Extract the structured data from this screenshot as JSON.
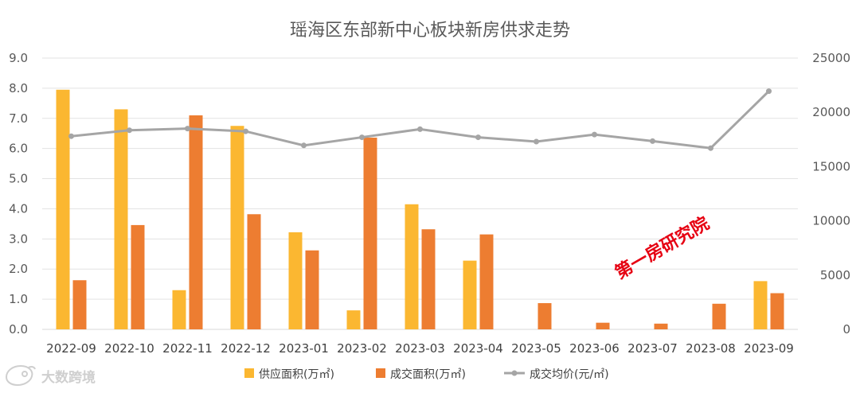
{
  "chart_data": {
    "type": "bar",
    "title": "瑶海区东部新中心板块新房供求走势",
    "categories": [
      "2022-09",
      "2022-10",
      "2022-11",
      "2022-12",
      "2023-01",
      "2023-02",
      "2023-03",
      "2023-04",
      "2023-05",
      "2023-06",
      "2023-07",
      "2023-08",
      "2023-09"
    ],
    "y_left": {
      "min": 0,
      "max": 9,
      "step": 1,
      "tick_labels": [
        "0.0",
        "1.0",
        "2.0",
        "3.0",
        "4.0",
        "5.0",
        "6.0",
        "7.0",
        "8.0",
        "9.0"
      ]
    },
    "y_right": {
      "min": 0,
      "max": 25000,
      "step": 5000,
      "tick_labels": [
        "0",
        "5000",
        "10000",
        "15000",
        "20000",
        "25000"
      ]
    },
    "grid": true,
    "legend_position": "bottom",
    "series": [
      {
        "name": "供应面积(万㎡)",
        "type": "bar",
        "axis": "left",
        "color": "#FBB731",
        "values": [
          7.95,
          7.3,
          1.3,
          6.75,
          3.22,
          0.63,
          4.15,
          2.28,
          0,
          0,
          0,
          0,
          1.6
        ]
      },
      {
        "name": "成交面积(万㎡)",
        "type": "bar",
        "axis": "left",
        "color": "#ED7D31",
        "values": [
          1.63,
          3.46,
          7.1,
          3.82,
          2.62,
          6.36,
          3.32,
          3.15,
          0.87,
          0.22,
          0.19,
          0.85,
          1.2
        ]
      },
      {
        "name": "成交均价(元/㎡)",
        "type": "line",
        "axis": "right",
        "color": "#A5A5A5",
        "values": [
          17800,
          18350,
          18500,
          18250,
          16950,
          17700,
          18450,
          17700,
          17300,
          17950,
          17350,
          16700,
          21950
        ]
      }
    ]
  },
  "watermark": {
    "text": "第一房研究院",
    "color": "#e60012"
  },
  "logo": {
    "text": "大数跨境",
    "icon": "weibo-like-logo-icon"
  }
}
